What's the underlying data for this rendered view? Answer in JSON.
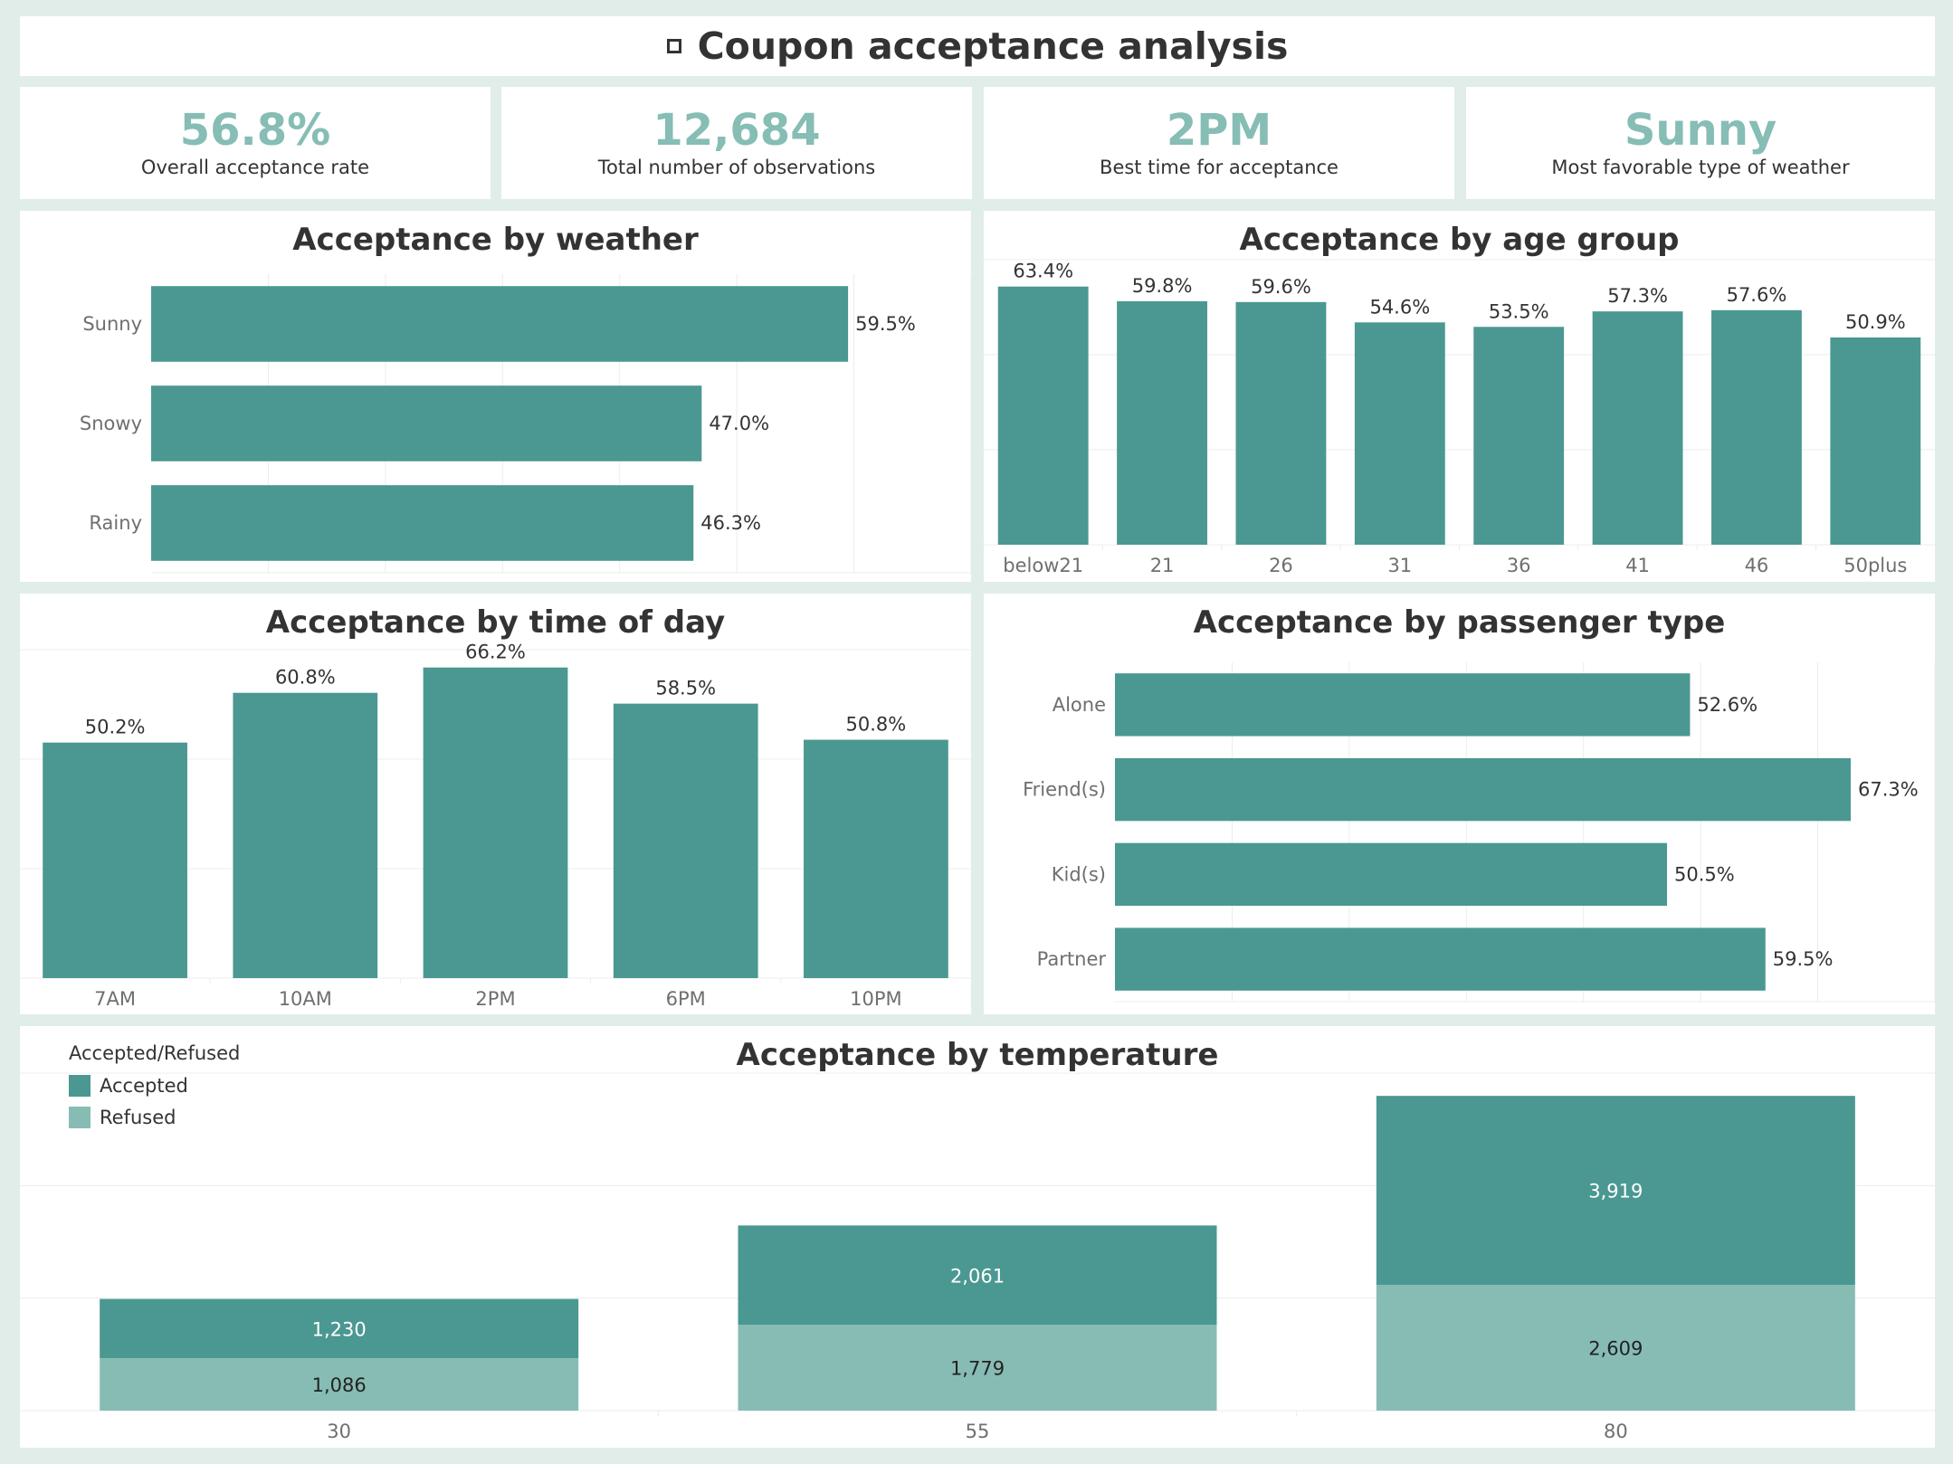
{
  "dashboard": {
    "title": "Coupon acceptance analysis"
  },
  "kpis": [
    {
      "value": "56.8%",
      "label": "Overall acceptance rate"
    },
    {
      "value": "12,684",
      "label": "Total number of observations"
    },
    {
      "value": "2PM",
      "label": "Best time for acceptance"
    },
    {
      "value": "Sunny",
      "label": "Most favorable type of weather"
    }
  ],
  "colors": {
    "accepted": "#4a9891",
    "refused": "#87bcb4",
    "grid": "#ececec",
    "axis_text": "#6f6f6f"
  },
  "chart_data": [
    {
      "id": "weather",
      "type": "bar",
      "orientation": "horizontal",
      "title": "Acceptance by weather",
      "categories": [
        "Sunny",
        "Snowy",
        "Rainy"
      ],
      "values": [
        59.5,
        47.0,
        46.3
      ],
      "labels": [
        "59.5%",
        "47.0%",
        "46.3%"
      ],
      "xlim": [
        0,
        70
      ],
      "grid": true
    },
    {
      "id": "age",
      "type": "bar",
      "orientation": "vertical",
      "title": "Acceptance by age group",
      "categories": [
        "below21",
        "21",
        "26",
        "31",
        "36",
        "41",
        "46",
        "50plus"
      ],
      "values": [
        63.4,
        59.8,
        59.6,
        54.6,
        53.5,
        57.3,
        57.6,
        50.9
      ],
      "labels": [
        "63.4%",
        "59.8%",
        "59.6%",
        "54.6%",
        "53.5%",
        "57.3%",
        "57.6%",
        "50.9%"
      ],
      "ylim": [
        0,
        70
      ],
      "grid": true
    },
    {
      "id": "time",
      "type": "bar",
      "orientation": "vertical",
      "title": "Acceptance by time of day",
      "categories": [
        "7AM",
        "10AM",
        "2PM",
        "6PM",
        "10PM"
      ],
      "values": [
        50.2,
        60.8,
        66.2,
        58.5,
        50.8
      ],
      "labels": [
        "50.2%",
        "60.8%",
        "66.2%",
        "58.5%",
        "50.8%"
      ],
      "ylim": [
        0,
        70
      ],
      "grid": true
    },
    {
      "id": "passenger",
      "type": "bar",
      "orientation": "horizontal",
      "title": "Acceptance by passenger type",
      "categories": [
        "Alone",
        "Friend(s)",
        "Kid(s)",
        "Partner"
      ],
      "values": [
        52.6,
        67.3,
        50.5,
        59.5
      ],
      "labels": [
        "52.6%",
        "67.3%",
        "50.5%",
        "59.5%"
      ],
      "xlim": [
        0,
        75
      ],
      "grid": true
    },
    {
      "id": "temperature",
      "type": "bar",
      "orientation": "vertical",
      "stacked": true,
      "title": "Acceptance by temperature",
      "categories": [
        "30",
        "55",
        "80"
      ],
      "series": [
        {
          "name": "Refused",
          "values": [
            1086,
            1779,
            2609
          ],
          "labels": [
            "1,086",
            "1,779",
            "2,609"
          ]
        },
        {
          "name": "Accepted",
          "values": [
            1230,
            2061,
            3919
          ],
          "labels": [
            "1,230",
            "2,061",
            "3,919"
          ]
        }
      ],
      "ylim": [
        0,
        7000
      ],
      "legend": {
        "title": "Accepted/Refused",
        "entries": [
          "Accepted",
          "Refused"
        ],
        "position": "top-left"
      },
      "grid": true
    }
  ]
}
